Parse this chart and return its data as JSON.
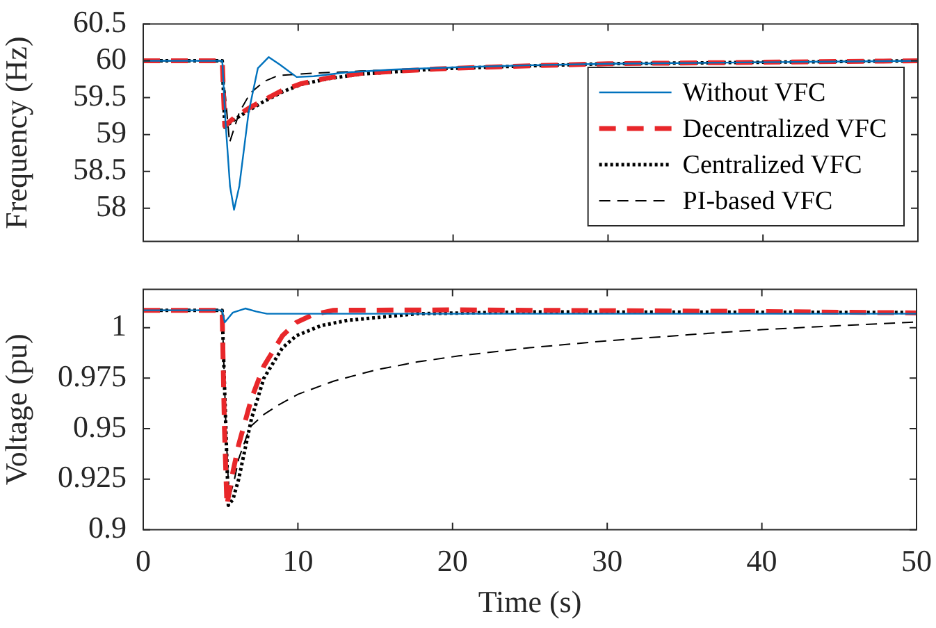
{
  "chart_data": [
    {
      "type": "line",
      "ylabel": "Frequency (Hz)",
      "xlim": [
        0,
        50
      ],
      "xticks": [
        0,
        10,
        20,
        30,
        40,
        50
      ],
      "ylim": [
        57.55,
        60.5
      ],
      "yticks": [
        58,
        58.5,
        59,
        59.5,
        60,
        60.5
      ],
      "tick_labels": "y",
      "grid": false,
      "legend": "right",
      "marker": "none",
      "series": [
        {
          "name": "Without VFC",
          "color": "#0072bd",
          "line_style": "solid",
          "x": [
            0,
            5.1,
            5.3,
            5.6,
            5.86,
            6.2,
            6.8,
            7.4,
            8.1,
            8.8,
            9.9,
            11,
            13,
            16,
            20,
            25,
            30,
            40,
            50
          ],
          "values": [
            60,
            60,
            59.2,
            58.3,
            57.98,
            58.3,
            59.3,
            59.9,
            60.05,
            59.95,
            59.78,
            59.79,
            59.84,
            59.88,
            59.91,
            59.94,
            59.96,
            59.98,
            60
          ]
        },
        {
          "name": "Decentralized VFC",
          "color": "#e8272a",
          "line_style": "dashed",
          "x": [
            0,
            5.1,
            5.26,
            6,
            7,
            7.8,
            9,
            10.2,
            12,
            14.1,
            18.9,
            24.6,
            30,
            40,
            50
          ],
          "values": [
            60,
            60,
            59.12,
            59.25,
            59.38,
            59.47,
            59.6,
            59.69,
            59.77,
            59.83,
            59.89,
            59.93,
            59.96,
            59.98,
            60
          ]
        },
        {
          "name": "Centralized VFC",
          "color": "#000000",
          "line_style": "dotted",
          "x": [
            0,
            5.1,
            5.26,
            6,
            7,
            7.8,
            9,
            10.2,
            12,
            14.1,
            18.9,
            24.6,
            30,
            40,
            50
          ],
          "values": [
            60,
            60,
            59.1,
            59.22,
            59.35,
            59.45,
            59.58,
            59.68,
            59.76,
            59.82,
            59.89,
            59.93,
            59.96,
            59.98,
            60
          ]
        },
        {
          "name": "PI-based VFC",
          "color": "#000000",
          "line_style": "dashed",
          "x": [
            0,
            5.1,
            5.57,
            6.2,
            6.9,
            7.8,
            8.7,
            10.9,
            14,
            20,
            30,
            40,
            50
          ],
          "values": [
            60,
            60,
            58.89,
            59.3,
            59.56,
            59.72,
            59.8,
            59.83,
            59.86,
            59.91,
            59.96,
            59.98,
            60
          ]
        }
      ]
    },
    {
      "type": "line",
      "xlabel": "Time (s)",
      "ylabel": "Voltage (pu)",
      "xlim": [
        0,
        50
      ],
      "xticks": [
        0,
        10,
        20,
        30,
        40,
        50
      ],
      "ylim": [
        0.9,
        1.019
      ],
      "yticks": [
        0.9,
        0.925,
        0.95,
        0.975,
        1
      ],
      "grid": false,
      "marker": "none",
      "series": [
        {
          "color": "#0072bd",
          "line_style": "solid",
          "x": [
            0,
            5.1,
            5.27,
            5.8,
            6.6,
            7.3,
            8,
            15,
            30,
            50
          ],
          "values": [
            1.0086,
            1.0086,
            1.0026,
            1.0075,
            1.0095,
            1.008,
            1.0069,
            1.0069,
            1.0069,
            1.0069
          ]
        },
        {
          "color": "#e8272a",
          "line_style": "dashed",
          "x": [
            0,
            5.1,
            5.25,
            5.41,
            5.7,
            6.17,
            7,
            7.8,
            9,
            9.9,
            11,
            12.3,
            20,
            30,
            40,
            50
          ],
          "values": [
            1.0086,
            1.0086,
            0.95,
            0.912,
            0.925,
            0.942,
            0.965,
            0.981,
            0.996,
            1.0026,
            1.0065,
            1.0086,
            1.0088,
            1.0084,
            1.008,
            1.0073
          ]
        },
        {
          "color": "#000000",
          "line_style": "dotted",
          "x": [
            0,
            5.1,
            5.3,
            5.5,
            5.8,
            6.17,
            7,
            7.8,
            9,
            9.9,
            11.5,
            13.2,
            17.7,
            25,
            35,
            50
          ],
          "values": [
            1.0086,
            1.0086,
            0.96,
            0.912,
            0.915,
            0.925,
            0.955,
            0.975,
            0.99,
            0.996,
            1.001,
            1.0036,
            1.0069,
            1.0078,
            1.0077,
            1.0075
          ]
        },
        {
          "color": "#000000",
          "line_style": "dashed",
          "x": [
            0,
            5.1,
            5.35,
            5.55,
            5.9,
            6.17,
            6.9,
            7.8,
            8.7,
            10,
            12.3,
            15,
            17.7,
            20.4,
            24.9,
            30,
            35.3,
            40,
            45,
            50
          ],
          "values": [
            1.0086,
            1.0086,
            0.95,
            0.915,
            0.925,
            0.935,
            0.9508,
            0.957,
            0.9615,
            0.967,
            0.9735,
            0.979,
            0.983,
            0.986,
            0.99,
            0.9935,
            0.9965,
            0.999,
            1.001,
            1.0028
          ]
        }
      ]
    }
  ]
}
